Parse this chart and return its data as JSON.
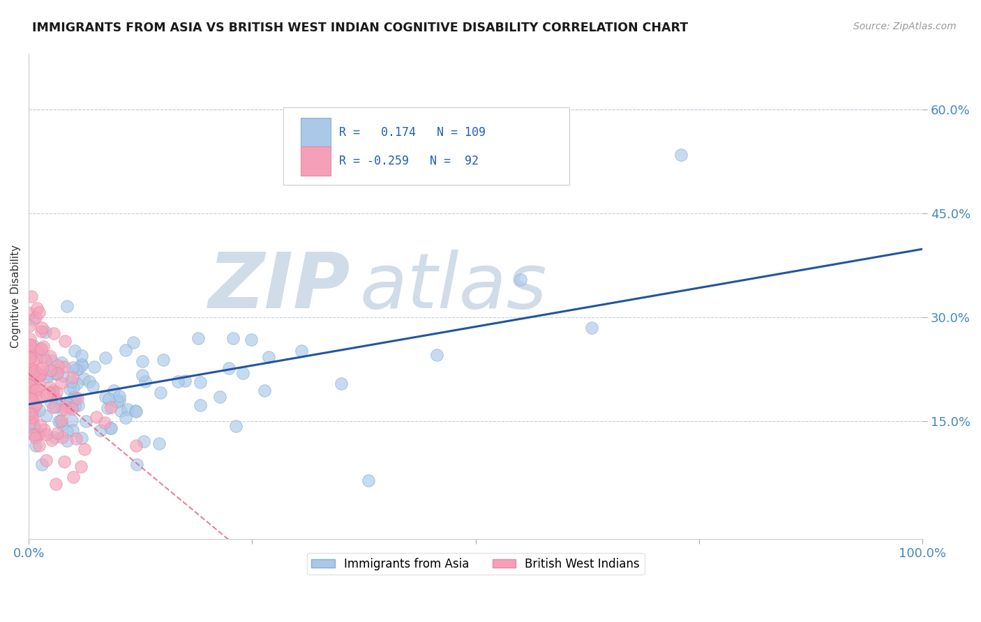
{
  "title": "IMMIGRANTS FROM ASIA VS BRITISH WEST INDIAN COGNITIVE DISABILITY CORRELATION CHART",
  "source": "Source: ZipAtlas.com",
  "ylabel": "Cognitive Disability",
  "xlim": [
    0.0,
    1.0
  ],
  "ylim": [
    -0.02,
    0.68
  ],
  "yticks": [
    0.15,
    0.3,
    0.45,
    0.6
  ],
  "ytick_labels": [
    "15.0%",
    "30.0%",
    "45.0%",
    "60.0%"
  ],
  "blue_R": 0.174,
  "blue_N": 109,
  "pink_R": -0.259,
  "pink_N": 92,
  "blue_label": "Immigrants from Asia",
  "pink_label": "British West Indians",
  "blue_color": "#aac8e8",
  "pink_color": "#f5a0b8",
  "blue_edge": "#88aed0",
  "pink_edge": "#e888a8",
  "blue_line_color": "#2255a0",
  "pink_line_color": "#e05878",
  "watermark_zip": "ZIP",
  "watermark_atlas": "atlas",
  "watermark_color": "#d0dce8",
  "background": "#ffffff",
  "title_fontsize": 12.5,
  "source_fontsize": 10,
  "seed": 7
}
